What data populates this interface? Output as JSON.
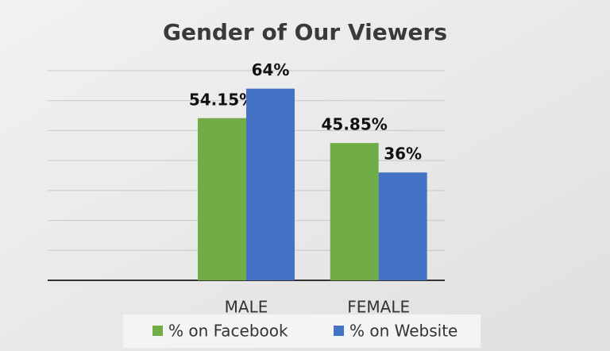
{
  "chart_data": {
    "type": "bar",
    "title": "Gender of Our Viewers",
    "categories": [
      null,
      "MALE",
      "FEMALE"
    ],
    "series": [
      {
        "name": "% on Facebook",
        "color": "#70ad47",
        "values": [
          null,
          54.15,
          45.85
        ],
        "value_labels": [
          null,
          "54.15%",
          "45.85%"
        ]
      },
      {
        "name": "% on Website",
        "color": "#4472c4",
        "values": [
          null,
          64,
          36
        ],
        "value_labels": [
          null,
          "64%",
          "36%"
        ]
      }
    ],
    "ylim": [
      0,
      70
    ],
    "yticks": [
      0,
      10,
      20,
      30,
      40,
      50,
      60,
      70
    ],
    "grid": true,
    "legend": "bottom"
  }
}
